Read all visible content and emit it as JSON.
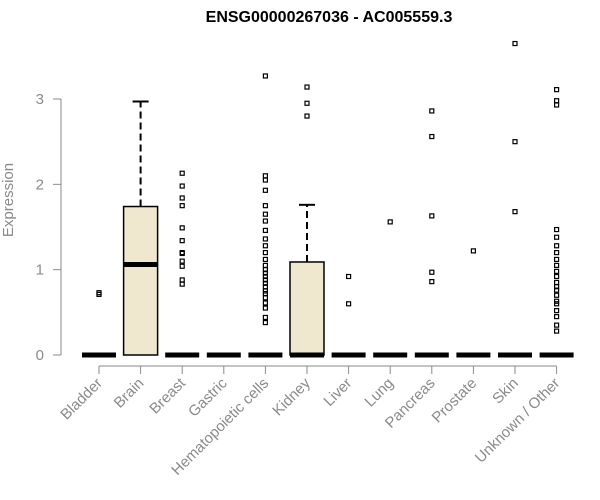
{
  "chart_data": {
    "type": "box",
    "title": "ENSG00000267036 - AC005559.3",
    "xlabel": "",
    "ylabel": "Expression",
    "ylim": [
      0,
      3.7
    ],
    "yticks": [
      0,
      1,
      2,
      3
    ],
    "box_fill": "#efe8cf",
    "categories": [
      "Bladder",
      "Brain",
      "Breast",
      "Gastric",
      "Hematopoietic cells",
      "Kidney",
      "Liver",
      "Lung",
      "Pancreas",
      "Prostate",
      "Skin",
      "Unknown / Other"
    ],
    "boxes": [
      {
        "category": "Bladder",
        "q1": 0,
        "median": 0,
        "q3": 0,
        "whisker_low": 0,
        "whisker_high": 0,
        "outliers": [
          0.71,
          0.73
        ]
      },
      {
        "category": "Brain",
        "q1": 0,
        "median": 1.06,
        "q3": 1.74,
        "whisker_low": 0,
        "whisker_high": 2.97,
        "outliers": []
      },
      {
        "category": "Breast",
        "q1": 0,
        "median": 0,
        "q3": 0,
        "whisker_low": 0,
        "whisker_high": 0,
        "outliers": [
          0.83,
          0.88,
          1.04,
          1.1,
          1.19,
          1.2,
          1.34,
          1.49,
          1.75,
          1.84,
          1.98,
          2.13
        ]
      },
      {
        "category": "Gastric",
        "q1": 0,
        "median": 0,
        "q3": 0,
        "whisker_low": 0,
        "whisker_high": 0,
        "outliers": []
      },
      {
        "category": "Hematopoietic cells",
        "q1": 0,
        "median": 0,
        "q3": 0,
        "whisker_low": 0,
        "whisker_high": 0,
        "outliers": [
          0.38,
          0.44,
          0.55,
          0.61,
          0.67,
          0.72,
          0.75,
          0.8,
          0.84,
          0.88,
          0.92,
          0.96,
          1.0,
          1.05,
          1.12,
          1.2,
          1.28,
          1.36,
          1.46,
          1.57,
          1.65,
          1.75,
          1.93,
          2.05,
          2.1,
          3.27
        ]
      },
      {
        "category": "Kidney",
        "q1": 0,
        "median": 0,
        "q3": 1.09,
        "whisker_low": 0,
        "whisker_high": 1.76,
        "outliers": [
          2.8,
          2.95,
          3.14
        ]
      },
      {
        "category": "Liver",
        "q1": 0,
        "median": 0,
        "q3": 0,
        "whisker_low": 0,
        "whisker_high": 0,
        "outliers": [
          0.6,
          0.92
        ]
      },
      {
        "category": "Lung",
        "q1": 0,
        "median": 0,
        "q3": 0,
        "whisker_low": 0,
        "whisker_high": 0,
        "outliers": [
          1.56
        ]
      },
      {
        "category": "Pancreas",
        "q1": 0,
        "median": 0,
        "q3": 0,
        "whisker_low": 0,
        "whisker_high": 0,
        "outliers": [
          0.86,
          0.97,
          1.63,
          2.56,
          2.86
        ]
      },
      {
        "category": "Prostate",
        "q1": 0,
        "median": 0,
        "q3": 0,
        "whisker_low": 0,
        "whisker_high": 0,
        "outliers": [
          1.22
        ]
      },
      {
        "category": "Skin",
        "q1": 0,
        "median": 0,
        "q3": 0,
        "whisker_low": 0,
        "whisker_high": 0,
        "outliers": [
          1.68,
          2.5,
          3.65
        ]
      },
      {
        "category": "Unknown / Other",
        "q1": 0,
        "median": 0,
        "q3": 0,
        "whisker_low": 0,
        "whisker_high": 0,
        "outliers": [
          0.28,
          0.35,
          0.45,
          0.52,
          0.6,
          0.63,
          0.7,
          0.76,
          0.8,
          0.85,
          0.92,
          0.98,
          1.05,
          1.12,
          1.2,
          1.28,
          1.38,
          1.47,
          2.93,
          2.98,
          3.11
        ]
      }
    ]
  }
}
